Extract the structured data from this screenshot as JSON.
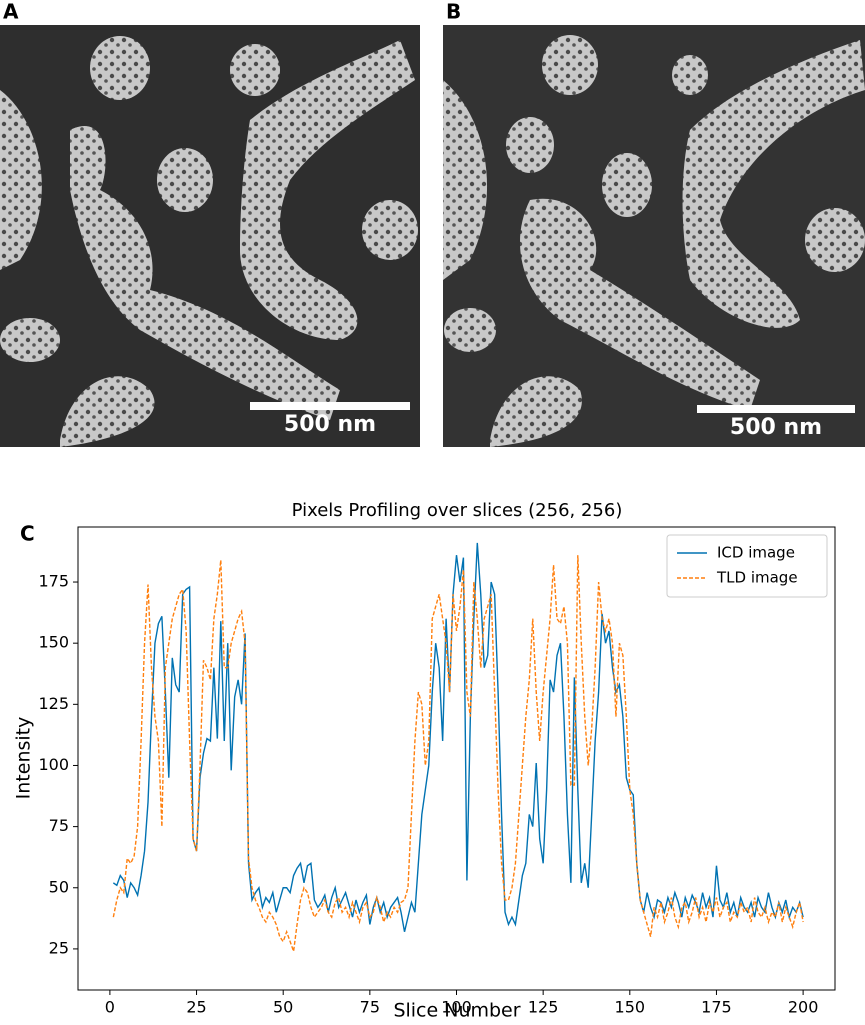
{
  "panels": [
    {
      "label": "A",
      "scale_bar": "500 nm"
    },
    {
      "label": "B",
      "scale_bar": "500 nm"
    }
  ],
  "panel_c_label": "C",
  "chart_data": {
    "type": "line",
    "title": "Pixels Profiling over slices (256, 256)",
    "x_label": "Slice Number",
    "y_label": "Intensity",
    "x": [
      1,
      2,
      3,
      4,
      5,
      6,
      7,
      8,
      9,
      10,
      11,
      12,
      13,
      14,
      15,
      16,
      17,
      18,
      19,
      20,
      21,
      22,
      23,
      24,
      25,
      26,
      27,
      28,
      29,
      30,
      31,
      32,
      33,
      34,
      35,
      36,
      37,
      38,
      39,
      40,
      41,
      42,
      43,
      44,
      45,
      46,
      47,
      48,
      49,
      50,
      51,
      52,
      53,
      54,
      55,
      56,
      57,
      58,
      59,
      60,
      61,
      62,
      63,
      64,
      65,
      66,
      67,
      68,
      69,
      70,
      71,
      72,
      73,
      74,
      75,
      76,
      77,
      78,
      79,
      80,
      81,
      82,
      83,
      84,
      85,
      86,
      87,
      88,
      89,
      90,
      91,
      92,
      93,
      94,
      95,
      96,
      97,
      98,
      99,
      100,
      101,
      102,
      103,
      104,
      105,
      106,
      107,
      108,
      109,
      110,
      111,
      112,
      113,
      114,
      115,
      116,
      117,
      118,
      119,
      120,
      121,
      122,
      123,
      124,
      125,
      126,
      127,
      128,
      129,
      130,
      131,
      132,
      133,
      134,
      135,
      136,
      137,
      138,
      139,
      140,
      141,
      142,
      143,
      144,
      145,
      146,
      147,
      148,
      149,
      150,
      151,
      152,
      153,
      154,
      155,
      156,
      157,
      158,
      159,
      160,
      161,
      162,
      163,
      164,
      165,
      166,
      167,
      168,
      169,
      170,
      171,
      172,
      173,
      174,
      175,
      176,
      177,
      178,
      179,
      180,
      181,
      182,
      183,
      184,
      185,
      186,
      187,
      188,
      189,
      190,
      191,
      192,
      193,
      194,
      195,
      196,
      197,
      198,
      199,
      200
    ],
    "series": [
      {
        "name": "ICD image",
        "color": "#0072b2",
        "dash": false,
        "values": [
          52,
          51,
          55,
          53,
          46,
          52,
          50,
          47,
          55,
          65,
          85,
          120,
          150,
          158,
          161,
          130,
          95,
          144,
          133,
          130,
          170,
          172,
          173,
          70,
          65,
          95,
          105,
          111,
          110,
          140,
          111,
          159,
          110,
          150,
          98,
          128,
          135,
          125,
          154,
          60,
          45,
          48,
          50,
          42,
          46,
          44,
          48,
          40,
          45,
          50,
          50,
          48,
          55,
          58,
          60,
          52,
          59,
          60,
          45,
          42,
          44,
          47,
          40,
          46,
          50,
          42,
          45,
          48,
          43,
          38,
          45,
          40,
          44,
          47,
          35,
          42,
          46,
          40,
          44,
          38,
          42,
          44,
          46,
          40,
          32,
          38,
          44,
          40,
          60,
          80,
          90,
          100,
          130,
          150,
          140,
          110,
          160,
          130,
          170,
          186,
          175,
          185,
          53,
          120,
          160,
          191,
          170,
          140,
          145,
          175,
          170,
          130,
          80,
          40,
          35,
          38,
          35,
          45,
          55,
          60,
          80,
          75,
          101,
          70,
          60,
          90,
          135,
          130,
          145,
          150,
          120,
          80,
          52,
          136,
          90,
          52,
          60,
          50,
          80,
          110,
          130,
          162,
          150,
          155,
          140,
          130,
          133,
          120,
          95,
          90,
          88,
          60,
          45,
          40,
          48,
          42,
          38,
          45,
          44,
          40,
          46,
          42,
          48,
          44,
          38,
          46,
          42,
          47,
          44,
          40,
          48,
          42,
          46,
          38,
          59,
          45,
          42,
          48,
          40,
          44,
          38,
          46,
          42,
          40,
          44,
          38,
          46,
          42,
          40,
          48,
          42,
          38,
          44,
          40,
          45,
          38,
          42,
          40,
          44,
          38
        ]
      },
      {
        "name": "TLD image",
        "color": "#ff7f0e",
        "dash": true,
        "values": [
          38,
          45,
          50,
          48,
          62,
          60,
          63,
          75,
          110,
          150,
          174,
          140,
          120,
          110,
          75,
          140,
          150,
          160,
          165,
          170,
          172,
          155,
          110,
          70,
          65,
          100,
          143,
          140,
          135,
          160,
          170,
          184,
          140,
          140,
          150,
          155,
          160,
          163,
          150,
          62,
          50,
          45,
          42,
          38,
          36,
          40,
          38,
          35,
          30,
          28,
          32,
          28,
          24,
          35,
          45,
          50,
          48,
          42,
          38,
          40,
          42,
          45,
          40,
          38,
          44,
          46,
          40,
          42,
          38,
          44,
          40,
          36,
          42,
          44,
          38,
          40,
          46,
          42,
          36,
          40,
          38,
          42,
          40,
          44,
          45,
          50,
          80,
          110,
          130,
          125,
          100,
          110,
          160,
          165,
          170,
          160,
          150,
          130,
          170,
          155,
          165,
          180,
          130,
          120,
          175,
          160,
          140,
          160,
          165,
          170,
          130,
          90,
          60,
          45,
          45,
          50,
          60,
          80,
          100,
          120,
          135,
          160,
          130,
          110,
          130,
          145,
          160,
          182,
          160,
          158,
          165,
          150,
          92,
          92,
          186,
          150,
          120,
          100,
          115,
          140,
          175,
          160,
          155,
          160,
          150,
          120,
          150,
          145,
          120,
          90,
          80,
          60,
          45,
          40,
          35,
          30,
          42,
          38,
          44,
          36,
          40,
          46,
          38,
          34,
          42,
          44,
          36,
          40,
          46,
          38,
          42,
          36,
          44,
          40,
          46,
          38,
          42,
          44,
          36,
          40,
          38,
          44,
          40,
          42,
          36,
          46,
          40,
          38,
          42,
          36,
          40,
          38,
          44,
          36,
          42,
          38,
          34,
          40,
          44,
          36
        ]
      }
    ],
    "xlim": [
      -9.2,
      209.2
    ],
    "ylim": [
      8.2,
      197.5
    ],
    "xticks": [
      0,
      25,
      50,
      75,
      100,
      125,
      150,
      175,
      200
    ],
    "yticks": [
      25,
      50,
      75,
      100,
      125,
      150,
      175
    ],
    "legend": "upper right",
    "grid": false
  }
}
